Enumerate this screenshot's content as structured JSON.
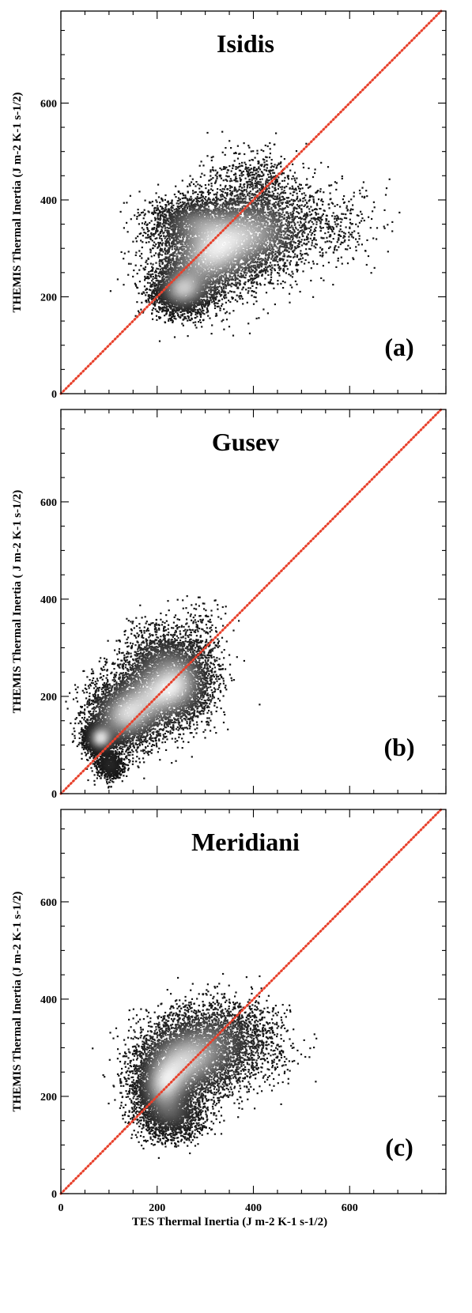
{
  "chart_data": [
    {
      "type": "scatter",
      "title": "Isidis",
      "panel_label": "(a)",
      "xlabel": "",
      "ylabel": "THEMIS Thermal Inertia (J m-2 K-1 s-1/2)",
      "xlim": [
        0,
        800
      ],
      "ylim": [
        0,
        790
      ],
      "x_ticks": [],
      "y_ticks": [
        "0",
        "200",
        "400",
        "600"
      ],
      "reference_line": {
        "type": "1:1",
        "color": "#e8412c",
        "style": "dotted"
      },
      "series": [
        {
          "values": [
            {
              "x": 250,
              "y": 215,
              "spread_x": 30,
              "spread_y": 25,
              "weight": 1.0
            },
            {
              "x": 300,
              "y": 280,
              "spread_x": 55,
              "spread_y": 45,
              "weight": 1.0
            },
            {
              "x": 360,
              "y": 330,
              "spread_x": 60,
              "spread_y": 45,
              "weight": 0.8
            },
            {
              "x": 430,
              "y": 340,
              "spread_x": 55,
              "spread_y": 45,
              "weight": 0.5
            },
            {
              "x": 270,
              "y": 360,
              "spread_x": 45,
              "spread_y": 25,
              "weight": 0.5
            },
            {
              "x": 400,
              "y": 440,
              "spread_x": 50,
              "spread_y": 35,
              "weight": 0.2
            },
            {
              "x": 560,
              "y": 350,
              "spread_x": 50,
              "spread_y": 40,
              "weight": 0.12
            }
          ]
        }
      ],
      "colors": {
        "core": "#f0f0f0",
        "edge": "#141414"
      }
    },
    {
      "type": "scatter",
      "title": "Gusev",
      "panel_label": "(b)",
      "xlabel": "",
      "ylabel": "THEMIS Thermal Inertia ( J m-2 K-1 s-1/2)",
      "xlim": [
        0,
        800
      ],
      "ylim": [
        0,
        790
      ],
      "x_ticks": [],
      "y_ticks": [
        "0",
        "200",
        "400",
        "600"
      ],
      "reference_line": {
        "type": "1:1",
        "color": "#e8412c",
        "style": "dotted"
      },
      "series": [
        {
          "values": [
            {
              "x": 80,
              "y": 115,
              "spread_x": 15,
              "spread_y": 15,
              "weight": 1.0
            },
            {
              "x": 130,
              "y": 160,
              "spread_x": 40,
              "spread_y": 35,
              "weight": 1.0
            },
            {
              "x": 200,
              "y": 210,
              "spread_x": 50,
              "spread_y": 40,
              "weight": 1.0
            },
            {
              "x": 250,
              "y": 240,
              "spread_x": 35,
              "spread_y": 40,
              "weight": 0.6
            },
            {
              "x": 200,
              "y": 290,
              "spread_x": 40,
              "spread_y": 30,
              "weight": 0.3
            },
            {
              "x": 100,
              "y": 60,
              "spread_x": 15,
              "spread_y": 15,
              "weight": 0.25
            },
            {
              "x": 290,
              "y": 320,
              "spread_x": 30,
              "spread_y": 40,
              "weight": 0.08
            }
          ]
        }
      ],
      "colors": {
        "core": "#f0f0f0",
        "edge": "#141414"
      }
    },
    {
      "type": "scatter",
      "title": "Meridiani",
      "panel_label": "(c)",
      "xlabel": "TES Thermal Inertia (J m-2 K-1 s-1/2)",
      "ylabel": "THEMIS Thermal Inertia (J m-2 K-1 s-1/2)",
      "xlim": [
        0,
        800
      ],
      "ylim": [
        0,
        790
      ],
      "x_ticks": [
        "0",
        "200",
        "400",
        "600"
      ],
      "y_ticks": [
        "0",
        "200",
        "400",
        "600"
      ],
      "reference_line": {
        "type": "1:1",
        "color": "#e8412c",
        "style": "dotted"
      },
      "series": [
        {
          "values": [
            {
              "x": 210,
              "y": 220,
              "spread_x": 30,
              "spread_y": 35,
              "weight": 1.0
            },
            {
              "x": 240,
              "y": 270,
              "spread_x": 45,
              "spread_y": 45,
              "weight": 0.9
            },
            {
              "x": 300,
              "y": 290,
              "spread_x": 55,
              "spread_y": 45,
              "weight": 0.8
            },
            {
              "x": 230,
              "y": 160,
              "spread_x": 35,
              "spread_y": 25,
              "weight": 0.5
            },
            {
              "x": 340,
              "y": 340,
              "spread_x": 50,
              "spread_y": 35,
              "weight": 0.3
            },
            {
              "x": 420,
              "y": 300,
              "spread_x": 40,
              "spread_y": 40,
              "weight": 0.1
            }
          ]
        }
      ],
      "colors": {
        "core": "#f0f0f0",
        "edge": "#141414"
      }
    }
  ]
}
